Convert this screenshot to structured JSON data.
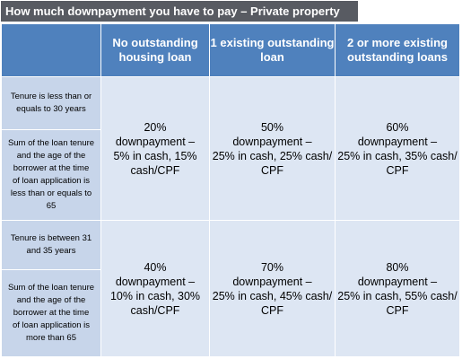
{
  "title": "How much downpayment you have to pay – Private property",
  "headers": {
    "col_1": [
      "No outstanding",
      "housing loan"
    ],
    "col_2": [
      "1 existing outstanding",
      "loan"
    ],
    "col_3": [
      "2 or more existing",
      "outstanding loans"
    ]
  },
  "rows": [
    {
      "labels": [
        [
          "Tenure is less than or",
          "equals to 30 years"
        ],
        [
          "Sum of the loan tenure",
          "and the age of the",
          "borrower at the time",
          "of loan application is",
          "less than or equals to",
          "65"
        ]
      ],
      "values": [
        [
          "20%",
          "downpayment –",
          "5% in cash, 15%",
          "cash/CPF"
        ],
        [
          "50%",
          "downpayment –",
          "25% in cash, 25% cash/",
          "CPF"
        ],
        [
          "60%",
          "downpayment –",
          "25% in cash, 35% cash/",
          "CPF"
        ]
      ]
    },
    {
      "labels": [
        [
          "Tenure is between 31",
          "and 35 years"
        ],
        [
          "Sum of the loan tenure",
          "and the age of the",
          "borrower at the time",
          "of loan application is",
          "more than 65"
        ]
      ],
      "values": [
        [
          "40%",
          "downpayment –",
          "10% in cash, 30%",
          "cash/CPF"
        ],
        [
          "70%",
          "downpayment –",
          "25% in cash, 45% cash/",
          "CPF"
        ],
        [
          "80%",
          "downpayment –",
          "25% in cash, 55% cash/",
          "CPF"
        ]
      ]
    }
  ],
  "colors": {
    "title_bg": "#585b62",
    "header_bg": "#4f81bd",
    "label_bg": "#c7d5ea",
    "value_bg": "#dde6f3"
  }
}
